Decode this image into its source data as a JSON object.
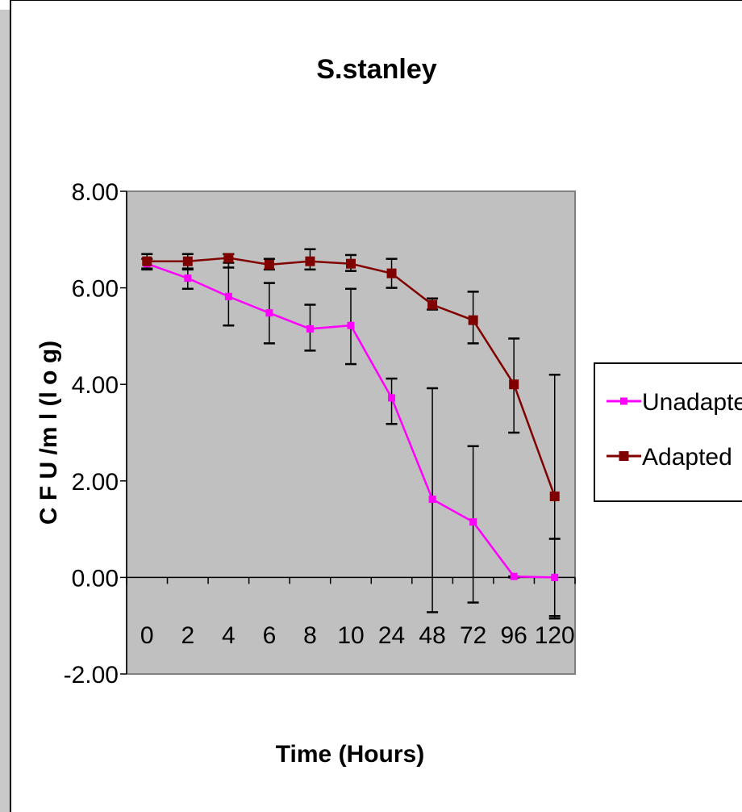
{
  "chart_data": {
    "type": "line",
    "title": "S.stanley",
    "xlabel": "Time (Hours)",
    "ylabel": "C F U /m l (l o g)",
    "categories": [
      "0",
      "2",
      "4",
      "6",
      "8",
      "10",
      "24",
      "48",
      "72",
      "96",
      "120"
    ],
    "ylim": [
      -2,
      8
    ],
    "yticks": [
      "8.00",
      "6.00",
      "4.00",
      "2.00",
      "0.00",
      "-2.00"
    ],
    "ytick_values": [
      8,
      6,
      4,
      2,
      0,
      -2
    ],
    "grid": false,
    "legend": "right",
    "plot_background": "#c0c0c0",
    "series": [
      {
        "name": "Unadapted",
        "color": "#ff00ff",
        "marker": "square-small",
        "values": [
          6.5,
          6.2,
          5.82,
          5.48,
          5.15,
          5.22,
          3.72,
          1.62,
          1.15,
          0.02,
          0.0
        ],
        "error_low": [
          6.4,
          5.98,
          5.22,
          4.85,
          4.7,
          4.42,
          3.18,
          -0.72,
          -0.52,
          0.0,
          -0.8
        ],
        "error_high": [
          6.6,
          6.4,
          6.52,
          6.1,
          5.65,
          5.98,
          4.12,
          3.92,
          2.72,
          0.02,
          0.8
        ]
      },
      {
        "name": "Adapted",
        "color": "#800000",
        "marker": "square",
        "values": [
          6.55,
          6.55,
          6.62,
          6.48,
          6.55,
          6.5,
          6.3,
          5.65,
          5.33,
          4.0,
          1.68
        ],
        "error_low": [
          6.38,
          6.38,
          6.42,
          6.38,
          6.38,
          6.35,
          6.0,
          5.55,
          4.85,
          3.0,
          -0.85
        ],
        "error_high": [
          6.7,
          6.7,
          6.7,
          6.6,
          6.8,
          6.68,
          6.6,
          5.78,
          5.92,
          4.95,
          4.2
        ]
      }
    ]
  }
}
